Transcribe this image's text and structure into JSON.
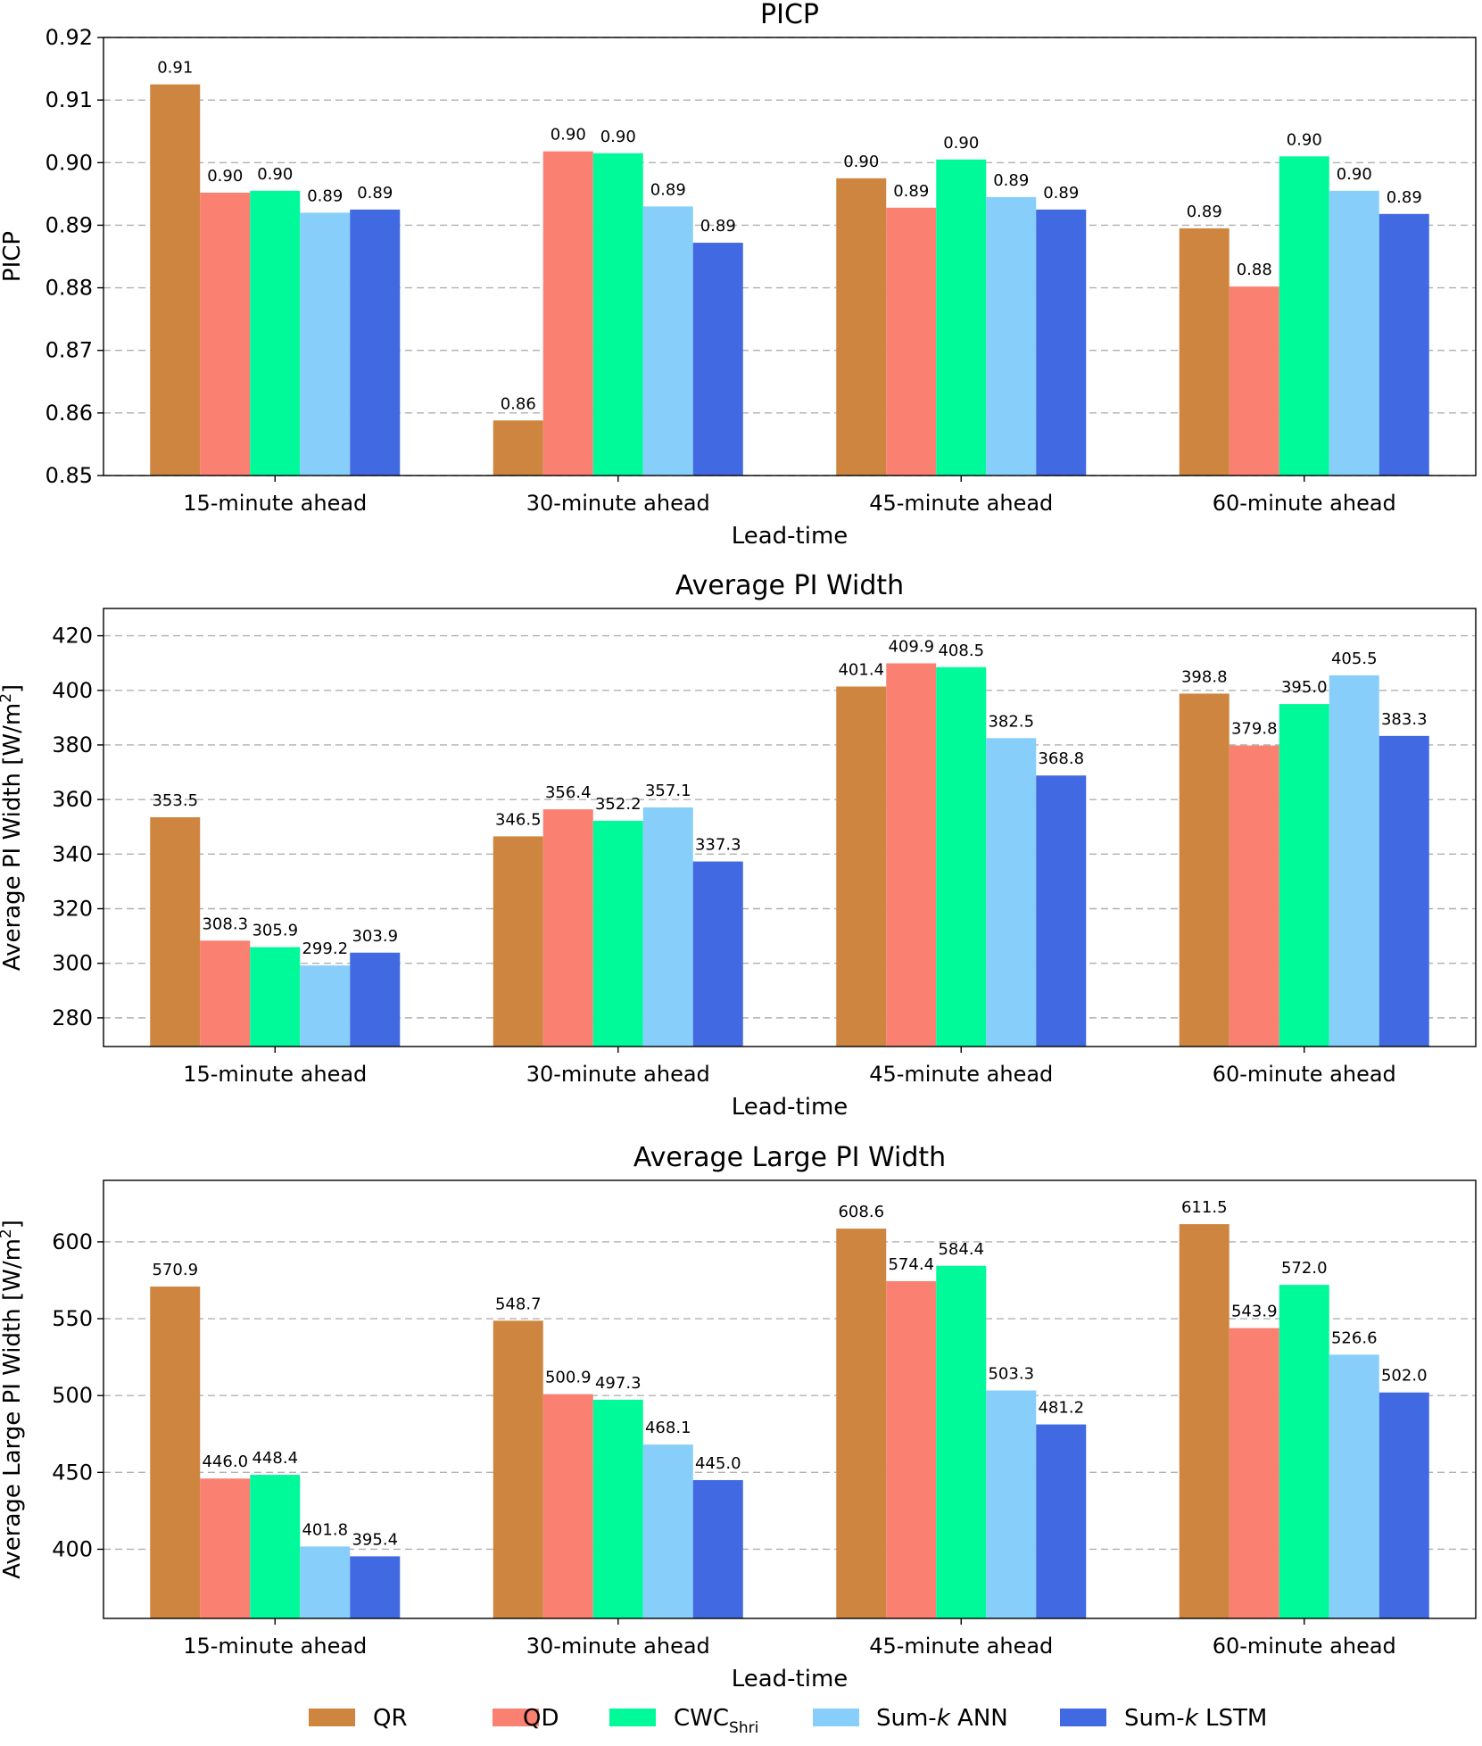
{
  "chart_data": [
    {
      "type": "bar",
      "title": "PICP",
      "xlabel": "Lead-time",
      "ylabel": "PICP",
      "ylabel_sup": "",
      "ylabel_tail": "",
      "ylim": [
        0.85,
        0.92
      ],
      "yticks": [
        0.85,
        0.86,
        0.87,
        0.88,
        0.89,
        0.9,
        0.91,
        0.92
      ],
      "ytick_labels": [
        "0.85",
        "0.86",
        "0.87",
        "0.88",
        "0.89",
        "0.90",
        "0.91",
        "0.92"
      ],
      "grid": true,
      "categories": [
        "15-minute ahead",
        "30-minute ahead",
        "45-minute ahead",
        "60-minute ahead"
      ],
      "series": [
        {
          "name": "QR",
          "values": [
            0.9125,
            0.8588,
            0.8975,
            0.8895
          ],
          "labels": [
            "0.91",
            "0.86",
            "0.90",
            "0.89"
          ]
        },
        {
          "name": "QD",
          "values": [
            0.8952,
            0.9018,
            0.8928,
            0.8802
          ],
          "labels": [
            "0.90",
            "0.90",
            "0.89",
            "0.88"
          ]
        },
        {
          "name": "CWC Shri",
          "values": [
            0.8955,
            0.9015,
            0.9005,
            0.901
          ],
          "labels": [
            "0.90",
            "0.90",
            "0.90",
            "0.90"
          ]
        },
        {
          "name": "Sum-k ANN",
          "values": [
            0.892,
            0.893,
            0.8945,
            0.8955
          ],
          "labels": [
            "0.89",
            "0.89",
            "0.89",
            "0.90"
          ]
        },
        {
          "name": "Sum-k LSTM",
          "values": [
            0.8925,
            0.8872,
            0.8925,
            0.8918
          ],
          "labels": [
            "0.89",
            "0.89",
            "0.89",
            "0.89"
          ]
        }
      ]
    },
    {
      "type": "bar",
      "title": "Average PI Width",
      "xlabel": "Lead-time",
      "ylabel": "Average PI Width [W/m",
      "ylabel_sup": "2",
      "ylabel_tail": "]",
      "ylim": [
        269.5,
        430
      ],
      "yticks": [
        280,
        300,
        320,
        340,
        360,
        380,
        400,
        420
      ],
      "ytick_labels": [
        "280",
        "300",
        "320",
        "340",
        "360",
        "380",
        "400",
        "420"
      ],
      "grid": true,
      "categories": [
        "15-minute ahead",
        "30-minute ahead",
        "45-minute ahead",
        "60-minute ahead"
      ],
      "series": [
        {
          "name": "QR",
          "values": [
            353.5,
            346.5,
            401.4,
            398.8
          ],
          "labels": [
            "353.5",
            "346.5",
            "401.4",
            "398.8"
          ]
        },
        {
          "name": "QD",
          "values": [
            308.3,
            356.4,
            409.9,
            379.8
          ],
          "labels": [
            "308.3",
            "356.4",
            "409.9",
            "379.8"
          ]
        },
        {
          "name": "CWC Shri",
          "values": [
            305.9,
            352.2,
            408.5,
            395.0
          ],
          "labels": [
            "305.9",
            "352.2",
            "408.5",
            "395.0"
          ]
        },
        {
          "name": "Sum-k ANN",
          "values": [
            299.2,
            357.1,
            382.5,
            405.5
          ],
          "labels": [
            "299.2",
            "357.1",
            "382.5",
            "405.5"
          ]
        },
        {
          "name": "Sum-k LSTM",
          "values": [
            303.9,
            337.3,
            368.8,
            383.3
          ],
          "labels": [
            "303.9",
            "337.3",
            "368.8",
            "383.3"
          ]
        }
      ]
    },
    {
      "type": "bar",
      "title": "Average Large PI Width",
      "xlabel": "Lead-time",
      "ylabel": "Average Large PI Width [W/m",
      "ylabel_sup": "2",
      "ylabel_tail": "]",
      "ylim": [
        355,
        640
      ],
      "yticks": [
        400,
        450,
        500,
        550,
        600
      ],
      "ytick_labels": [
        "400",
        "450",
        "500",
        "550",
        "600"
      ],
      "grid": true,
      "categories": [
        "15-minute ahead",
        "30-minute ahead",
        "45-minute ahead",
        "60-minute ahead"
      ],
      "series": [
        {
          "name": "QR",
          "values": [
            570.9,
            548.7,
            608.6,
            611.5
          ],
          "labels": [
            "570.9",
            "548.7",
            "608.6",
            "611.5"
          ]
        },
        {
          "name": "QD",
          "values": [
            446.0,
            500.9,
            574.4,
            543.9
          ],
          "labels": [
            "446.0",
            "500.9",
            "574.4",
            "543.9"
          ]
        },
        {
          "name": "CWC Shri",
          "values": [
            448.4,
            497.3,
            584.4,
            572.0
          ],
          "labels": [
            "448.4",
            "497.3",
            "584.4",
            "572.0"
          ]
        },
        {
          "name": "Sum-k ANN",
          "values": [
            401.8,
            468.1,
            503.3,
            526.6
          ],
          "labels": [
            "401.8",
            "468.1",
            "503.3",
            "526.6"
          ]
        },
        {
          "name": "Sum-k LSTM",
          "values": [
            395.4,
            445.0,
            481.2,
            502.0
          ],
          "labels": [
            "395.4",
            "445.0",
            "481.2",
            "502.0"
          ]
        }
      ]
    }
  ],
  "legend": {
    "placement": "bottom",
    "items": [
      {
        "label": "QR",
        "color": "#cd853f"
      },
      {
        "label": "QD",
        "color": "#fa8072"
      },
      {
        "label": "CWC",
        "sub": "Shri",
        "color": "#00fa9a"
      },
      {
        "label": "Sum-",
        "italic": "k",
        "tail": " ANN",
        "color": "#87cefa"
      },
      {
        "label": "Sum-",
        "italic": "k",
        "tail": " LSTM",
        "color": "#4169e1"
      }
    ]
  },
  "colors": [
    "#cd853f",
    "#fa8072",
    "#00fa9a",
    "#87cefa",
    "#4169e1"
  ]
}
